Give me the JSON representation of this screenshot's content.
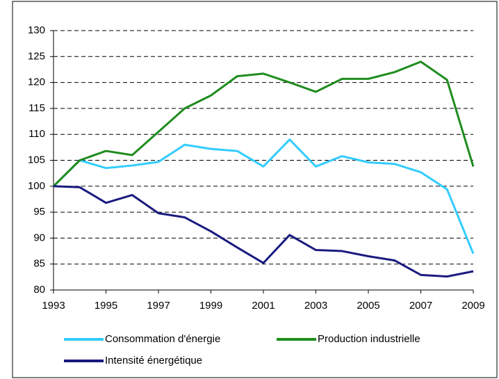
{
  "chart_data": {
    "type": "line",
    "x": [
      1993,
      1994,
      1995,
      1996,
      1997,
      1998,
      1999,
      2000,
      2001,
      2002,
      2003,
      2004,
      2005,
      2006,
      2007,
      2008,
      2009
    ],
    "series": [
      {
        "name": "Consommation d'énergie",
        "color": "#33ccff",
        "values": [
          100,
          105,
          103.5,
          104,
          104.7,
          108,
          107.2,
          106.8,
          103.8,
          109,
          103.8,
          105.8,
          104.6,
          104.3,
          102.7,
          99.4,
          87
        ]
      },
      {
        "name": "Production industrielle",
        "color": "#1e8c1e",
        "values": [
          100,
          105,
          106.8,
          106,
          110.5,
          115,
          117.5,
          121.2,
          121.7,
          120,
          118.2,
          120.7,
          120.7,
          122,
          124,
          120.5,
          103.8
        ]
      },
      {
        "name": "Intensité énergétique",
        "color": "#1a1a80",
        "values": [
          100,
          99.8,
          96.8,
          98.3,
          94.8,
          94,
          91.3,
          88.2,
          85.2,
          90.6,
          87.7,
          87.5,
          86.5,
          85.7,
          82.9,
          82.6,
          83.6
        ]
      }
    ],
    "xlim": [
      1993,
      2009
    ],
    "xticks": [
      1993,
      1995,
      1997,
      1999,
      2001,
      2003,
      2005,
      2007,
      2009
    ],
    "ylim": [
      80,
      130
    ],
    "yticks": [
      80,
      85,
      90,
      95,
      100,
      105,
      110,
      115,
      120,
      125,
      130
    ],
    "grid": true,
    "legend": "bottom"
  }
}
